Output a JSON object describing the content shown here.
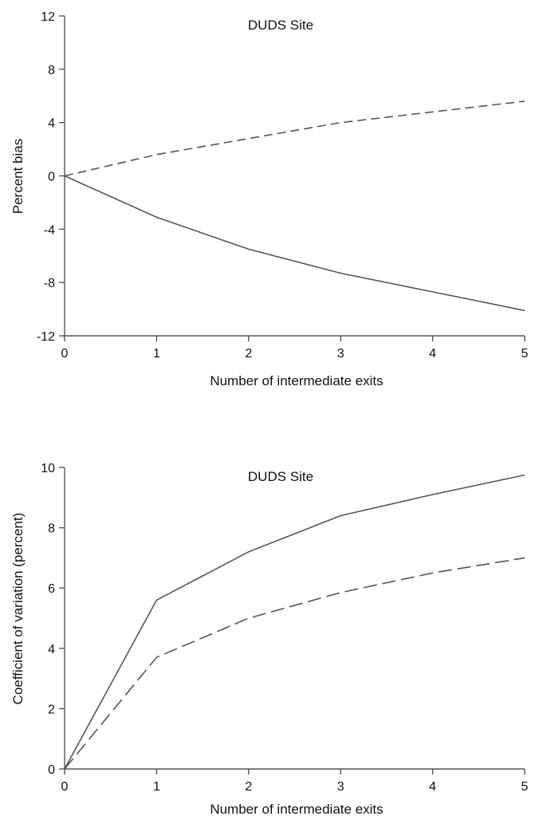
{
  "chart_data": [
    {
      "type": "line",
      "title": "DUDS Site",
      "xlabel": "Number of intermediate exits",
      "ylabel": "Percent bias",
      "xlim": [
        0,
        5
      ],
      "ylim": [
        -12,
        12
      ],
      "xticks": [
        "0",
        "1",
        "2",
        "3",
        "4",
        "5"
      ],
      "yticks": [
        "-12",
        "-8",
        "-4",
        "0",
        "4",
        "8",
        "12"
      ],
      "grid": false,
      "x": [
        0,
        1,
        2,
        3,
        4,
        5
      ],
      "series": [
        {
          "style": "solid",
          "values": [
            0,
            -3.1,
            -5.5,
            -7.3,
            -8.7,
            -10.1
          ]
        },
        {
          "style": "dashed",
          "values": [
            0,
            1.6,
            2.8,
            4.0,
            4.8,
            5.6
          ]
        }
      ]
    },
    {
      "type": "line",
      "title": "DUDS Site",
      "xlabel": "Number of intermediate exits",
      "ylabel": "Coefficient of variation (percent)",
      "xlim": [
        0,
        5
      ],
      "ylim": [
        0,
        10
      ],
      "xticks": [
        "0",
        "1",
        "2",
        "3",
        "4",
        "5"
      ],
      "yticks": [
        "0",
        "2",
        "4",
        "6",
        "8",
        "10"
      ],
      "grid": false,
      "x": [
        0,
        1,
        2,
        3,
        4,
        5
      ],
      "series": [
        {
          "style": "solid",
          "values": [
            0,
            5.6,
            7.2,
            8.4,
            9.1,
            9.75
          ]
        },
        {
          "style": "dashed",
          "values": [
            0,
            3.7,
            5.0,
            5.85,
            6.5,
            7.0
          ]
        }
      ]
    }
  ]
}
